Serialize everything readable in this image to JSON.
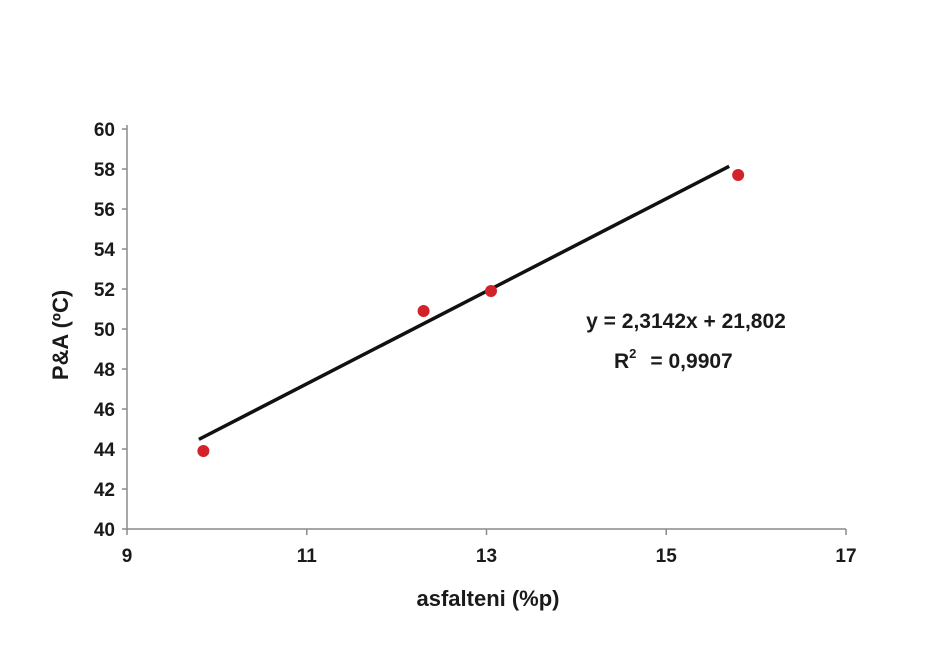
{
  "chart_data": {
    "type": "scatter",
    "xlabel": "asfalteni (%p)",
    "ylabel": "P&A (ºC)",
    "xlim": [
      9,
      17
    ],
    "ylim": [
      40,
      60
    ],
    "x_ticks": [
      "9",
      "11",
      "13",
      "15",
      "17"
    ],
    "y_ticks": [
      "40",
      "42",
      "44",
      "46",
      "48",
      "50",
      "52",
      "54",
      "56",
      "58",
      "60"
    ],
    "series": [
      {
        "points": [
          {
            "x": 9.85,
            "y": 43.9
          },
          {
            "x": 12.3,
            "y": 50.9
          },
          {
            "x": 13.05,
            "y": 51.9
          },
          {
            "x": 15.8,
            "y": 57.7
          }
        ],
        "color": "#d3222a"
      }
    ],
    "trendline": {
      "slope": 2.3142,
      "intercept": 21.802,
      "x_range": [
        9.8,
        15.7
      ],
      "color": "#111111"
    },
    "equation": "y = 2,3142x + 21,802",
    "r2_label": "R",
    "r2_exp": "2",
    "r2_value": "= 0,9907",
    "grid": false,
    "legend": "none"
  }
}
